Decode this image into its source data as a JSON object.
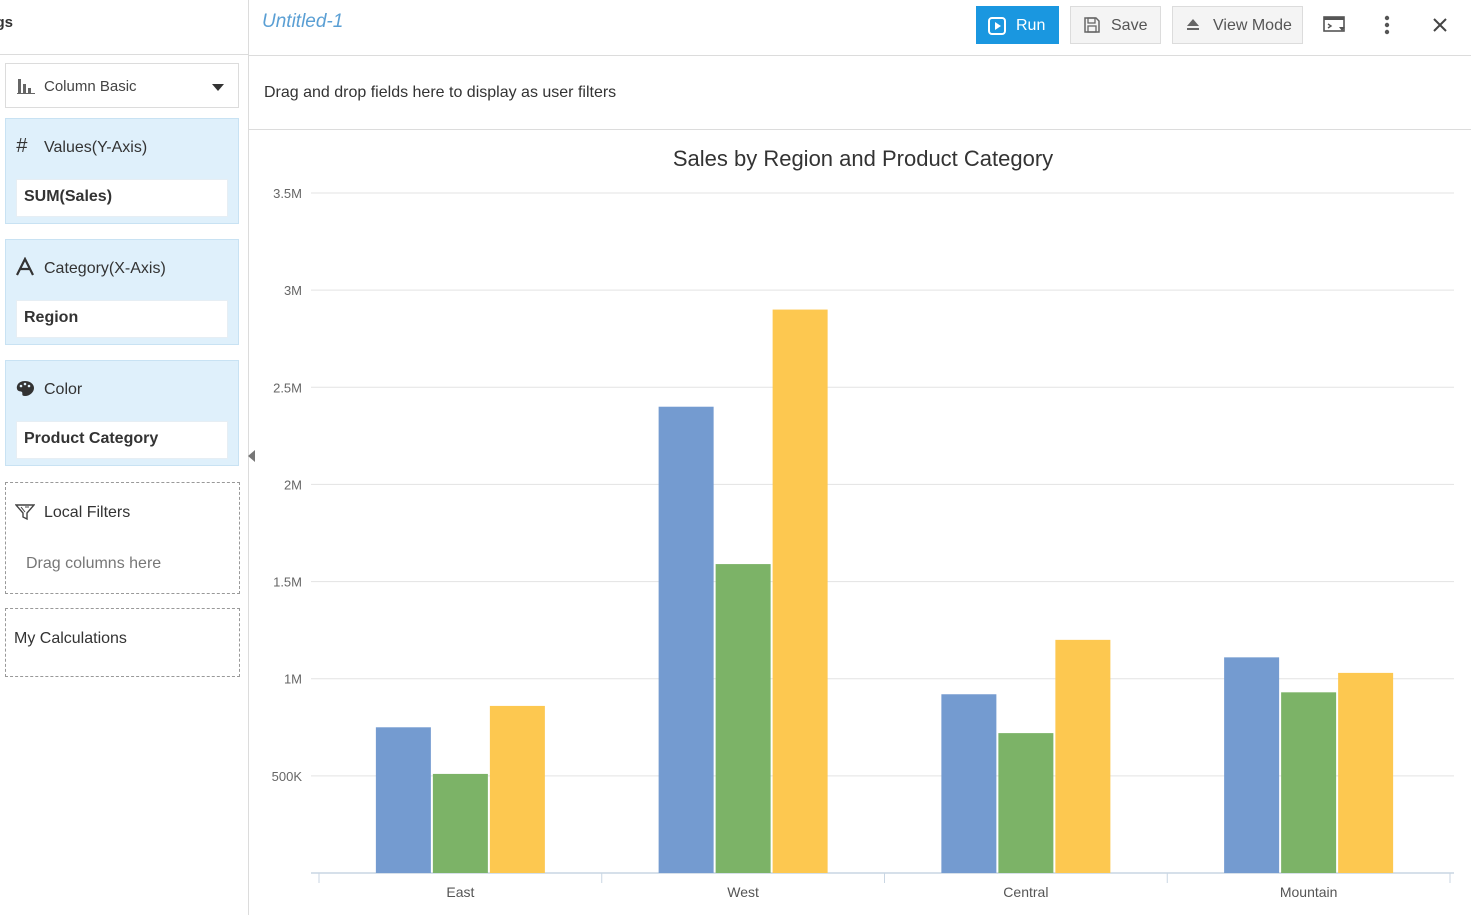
{
  "sidebar": {
    "title": "gs",
    "chart_type": {
      "label": "Column Basic",
      "icon": "column-chart-icon"
    },
    "wells": [
      {
        "key": "values",
        "label": "Values(Y-Axis)",
        "field": "SUM(Sales)",
        "icon": "hash-icon"
      },
      {
        "key": "category",
        "label": "Category(X-Axis)",
        "field": "Region",
        "icon": "letter-a-icon"
      },
      {
        "key": "color",
        "label": "Color",
        "field": "Product Category",
        "icon": "palette-icon"
      }
    ],
    "local_filters": {
      "label": "Local Filters",
      "hint": "Drag columns here",
      "icon": "filter-icon"
    },
    "my_calculations": {
      "label": "My Calculations"
    }
  },
  "topbar": {
    "title": "Untitled-1",
    "run_label": "Run",
    "save_label": "Save",
    "view_mode_label": "View Mode",
    "accent": "#1a97e0",
    "icons": [
      "play-icon",
      "save-icon",
      "eject-icon",
      "preview-icon",
      "more-vertical-icon",
      "close-icon"
    ]
  },
  "filter_zone": {
    "hint": "Drag and drop fields here to display as user filters"
  },
  "chart_data": {
    "type": "bar",
    "title": "Sales by Region and Product Category",
    "categories": [
      "East",
      "West",
      "Central",
      "Mountain"
    ],
    "series": [
      {
        "values": [
          750000,
          2400000,
          920000,
          1110000
        ],
        "color": "#749bd0"
      },
      {
        "values": [
          510000,
          1590000,
          720000,
          930000
        ],
        "color": "#7cb367"
      },
      {
        "values": [
          860000,
          2900000,
          1200000,
          1030000
        ],
        "color": "#fdc850"
      }
    ],
    "ylim": [
      0,
      3500000
    ],
    "yticks": [
      500000,
      1000000,
      1500000,
      2000000,
      2500000,
      3000000,
      3500000
    ],
    "ytick_labels": [
      "500K",
      "1M",
      "1.5M",
      "2M",
      "2.5M",
      "3M",
      "3.5M"
    ],
    "grid": true,
    "xlabel": "",
    "ylabel": ""
  }
}
